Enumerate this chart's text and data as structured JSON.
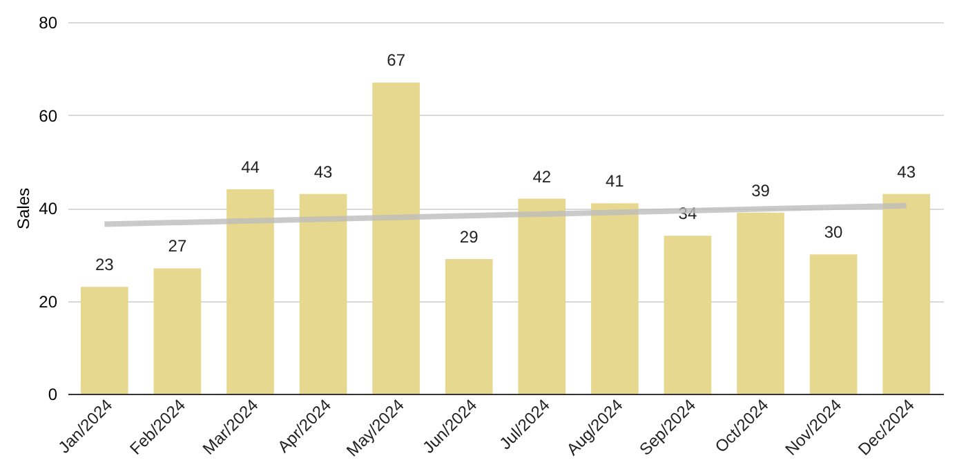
{
  "chart_data": {
    "type": "bar",
    "ylabel": "Sales",
    "categories": [
      "Jan/2024",
      "Feb/2024",
      "Mar/2024",
      "Apr/2024",
      "May/2024",
      "Jun/2024",
      "Jul/2024",
      "Aug/2024",
      "Sep/2024",
      "Oct/2024",
      "Nov/2024",
      "Dec/2024"
    ],
    "series": [
      {
        "color": "#e6d88e",
        "values": [
          23,
          27,
          44,
          43,
          67,
          29,
          42,
          41,
          34,
          39,
          30,
          43
        ],
        "value_labels": [
          "23",
          "27",
          "44",
          "43",
          "67",
          "29",
          "42",
          "41",
          "34",
          "39",
          "30",
          "43"
        ]
      },
      {
        "type": "line",
        "color": "#bdbdbd",
        "x": [
          "Jan/2024",
          "Dec/2024"
        ],
        "values": [
          36.5,
          40.5
        ]
      }
    ],
    "ylim": [
      0,
      80
    ],
    "yticks": [
      0,
      20,
      40,
      60,
      80
    ],
    "grid": "y"
  }
}
